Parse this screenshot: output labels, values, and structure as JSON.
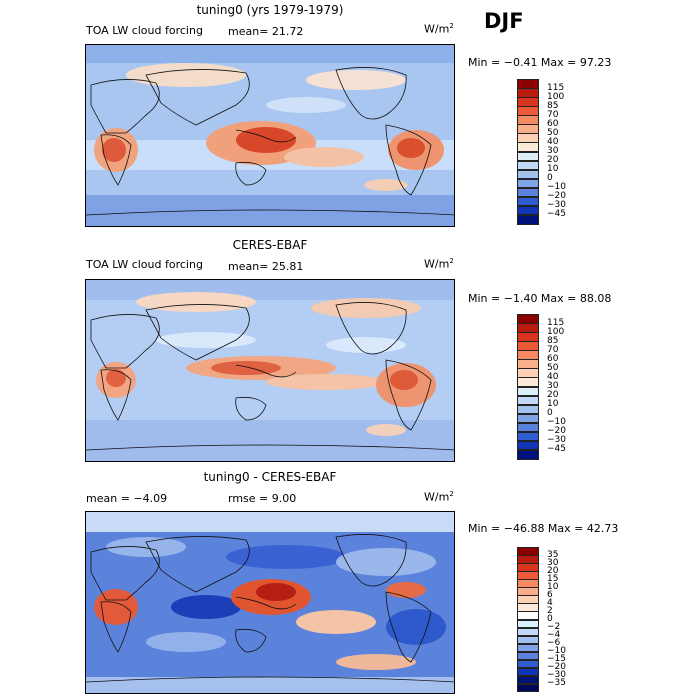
{
  "season": "DJF",
  "panels": [
    {
      "id": "model",
      "title": "tuning0 (yrs 1979-1979)",
      "left_label": "TOA LW cloud forcing",
      "mean_text": "mean=  21.72",
      "rmse_text": "",
      "units": "W/m",
      "units_sup": "2",
      "minmax": "Min =  −0.41  Max =  97.23",
      "colorbar_labels": [
        "115",
        "100",
        "85",
        "70",
        "60",
        "50",
        "40",
        "30",
        "20",
        "10",
        "0",
        "−10",
        "−20",
        "−30",
        "−45"
      ],
      "colorbar_colors": [
        "#8b0000",
        "#b81c0f",
        "#d6361e",
        "#ec5a36",
        "#f58a60",
        "#f9b08a",
        "#fcd1b4",
        "#fbe9da",
        "#ddeefb",
        "#c2daf5",
        "#a3c1ef",
        "#7fa3e6",
        "#5a82dc",
        "#2f5dcf",
        "#1035b5",
        "#00127a"
      ]
    },
    {
      "id": "obs",
      "title": "CERES-EBAF",
      "left_label": "TOA LW cloud forcing",
      "mean_text": "mean=  25.81",
      "rmse_text": "",
      "units": "W/m",
      "units_sup": "2",
      "minmax": "Min =  −1.40  Max =  88.08",
      "colorbar_labels": [
        "115",
        "100",
        "85",
        "70",
        "60",
        "50",
        "40",
        "30",
        "20",
        "10",
        "0",
        "−10",
        "−20",
        "−30",
        "−45"
      ],
      "colorbar_colors": [
        "#8b0000",
        "#b81c0f",
        "#d6361e",
        "#ec5a36",
        "#f58a60",
        "#f9b08a",
        "#fcd1b4",
        "#fbe9da",
        "#ddeefb",
        "#c2daf5",
        "#a3c1ef",
        "#7fa3e6",
        "#5a82dc",
        "#2f5dcf",
        "#1035b5",
        "#00127a"
      ]
    },
    {
      "id": "diff",
      "title": "tuning0 - CERES-EBAF",
      "left_label": "mean =  −4.09",
      "mean_text": "rmse =   9.00",
      "rmse_text": "",
      "units": "W/m",
      "units_sup": "2",
      "minmax": "Min = −46.88  Max =  42.73",
      "colorbar_labels": [
        "35",
        "30",
        "20",
        "15",
        "10",
        "6",
        "4",
        "2",
        "0",
        "−2",
        "−4",
        "−6",
        "−10",
        "−15",
        "−20",
        "−30",
        "−35"
      ],
      "colorbar_colors": [
        "#8b0000",
        "#b81c0f",
        "#d6361e",
        "#ec5a36",
        "#f58a60",
        "#f9b08a",
        "#fcd1b4",
        "#fbe9da",
        "#ffffff",
        "#ddeefb",
        "#c2daf5",
        "#a3c1ef",
        "#7fa3e6",
        "#5a82dc",
        "#2f5dcf",
        "#1035b5",
        "#00127a",
        "#00085a"
      ]
    }
  ]
}
